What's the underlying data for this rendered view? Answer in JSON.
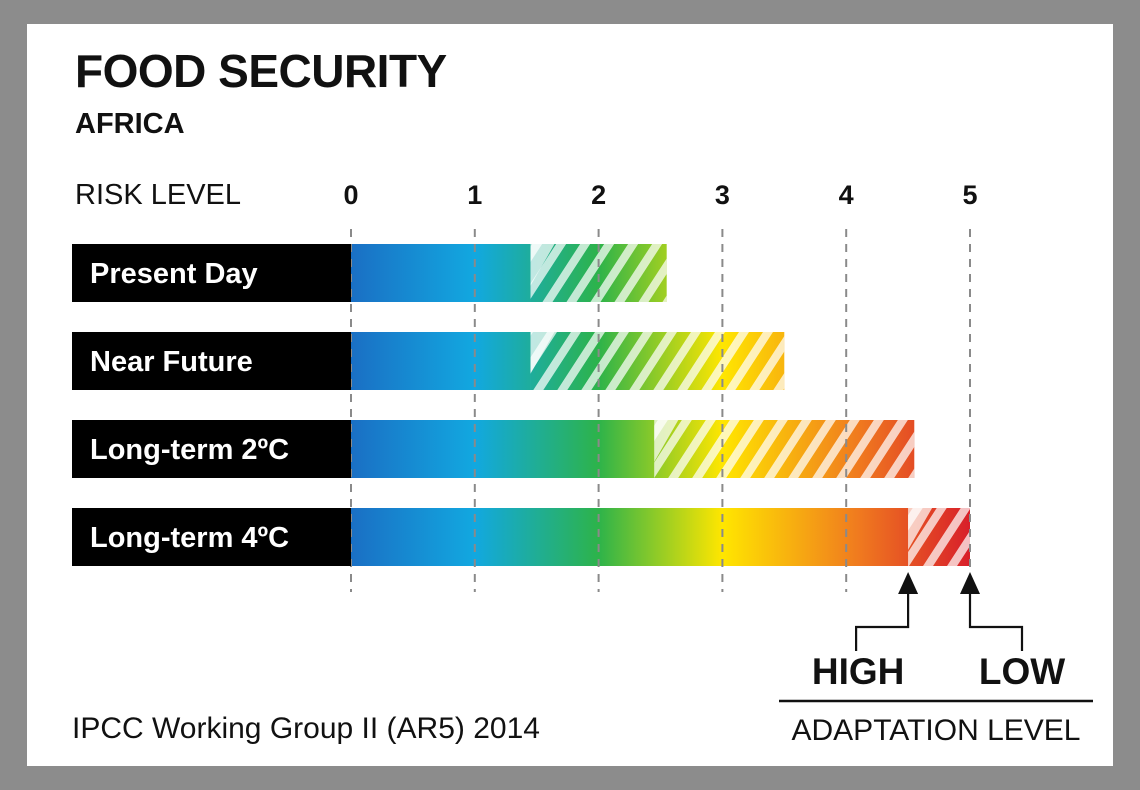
{
  "header": {
    "title": "FOOD SECURITY",
    "subtitle": "AFRICA"
  },
  "source": "IPCC Working Group II (AR5) 2014",
  "chart_data": {
    "type": "bar",
    "orientation": "horizontal",
    "xlabel": "RISK LEVEL",
    "xlim": [
      0,
      5
    ],
    "xticks": [
      "0",
      "1",
      "2",
      "3",
      "4",
      "5"
    ],
    "categories": [
      "Present Day",
      "Near Future",
      "Long-term 2ºC",
      "Long-term 4ºC"
    ],
    "series": [
      {
        "name": "HIGH",
        "values": [
          1.45,
          1.45,
          2.45,
          4.5
        ]
      },
      {
        "name": "LOW",
        "values": [
          2.55,
          3.5,
          4.55,
          5.0
        ]
      }
    ],
    "legend": {
      "title": "ADAPTATION LEVEL",
      "entries": [
        "HIGH",
        "LOW"
      ],
      "placement": "bottom-right"
    },
    "colors": {
      "scale": [
        "#1a6fc4",
        "#12a8e0",
        "#2db34a",
        "#ffe600",
        "#f07a1f",
        "#d81f2a"
      ],
      "hatch": "#ffffff",
      "label_bg": "#000000",
      "frame": "#8c8c8c"
    },
    "grid": true,
    "grid_style": "dashed"
  }
}
